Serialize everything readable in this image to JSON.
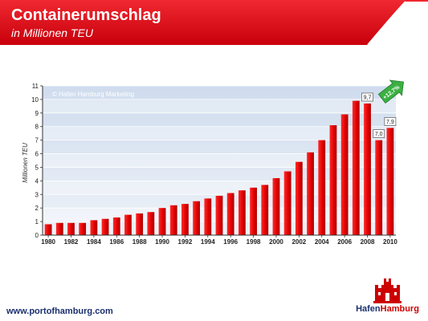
{
  "header": {
    "title": "Containerumschlag",
    "subtitle": "in Millionen TEU"
  },
  "colors": {
    "brand_red": "#e30613",
    "bar_red": "#e00000",
    "plot_background": "#dde6f2",
    "growth_arrow": "#33aa33",
    "footer_blue": "#1a2f6e"
  },
  "chart_data": {
    "type": "bar",
    "watermark": "© Hafen Hamburg Marketing",
    "categories": [
      "1980",
      "1981",
      "1982",
      "1983",
      "1984",
      "1985",
      "1986",
      "1987",
      "1988",
      "1989",
      "1990",
      "1991",
      "1992",
      "1993",
      "1994",
      "1995",
      "1996",
      "1997",
      "1998",
      "1999",
      "2000",
      "2001",
      "2002",
      "2003",
      "2004",
      "2005",
      "2006",
      "2007",
      "2008",
      "2009",
      "2010"
    ],
    "x_tick_labels": [
      "1980",
      "1982",
      "1984",
      "1986",
      "1988",
      "1990",
      "1992",
      "1994",
      "1996",
      "1998",
      "2000",
      "2002",
      "2004",
      "2006",
      "2008",
      "2010"
    ],
    "values": [
      0.8,
      0.9,
      0.9,
      0.9,
      1.1,
      1.2,
      1.3,
      1.5,
      1.6,
      1.7,
      2.0,
      2.2,
      2.3,
      2.5,
      2.7,
      2.9,
      3.1,
      3.3,
      3.5,
      3.7,
      4.2,
      4.7,
      5.4,
      6.1,
      7.0,
      8.1,
      8.9,
      9.9,
      9.7,
      7.0,
      7.9
    ],
    "data_labels": [
      {
        "category": "2008",
        "text": "9,7"
      },
      {
        "category": "2009",
        "text": "7,0"
      },
      {
        "category": "2010",
        "text": "7,9"
      }
    ],
    "annotation": "+12,7%",
    "ylabel": "Millionen TEU",
    "xlabel": "",
    "ylim": [
      0,
      11
    ],
    "y_ticks": [
      "0",
      "1",
      "2",
      "3",
      "4",
      "5",
      "6",
      "7",
      "8",
      "9",
      "10",
      "11"
    ],
    "grid": true,
    "legend": "none"
  },
  "footer": {
    "url": "www.portofhamburg.com",
    "logo_text_a": "Hafen",
    "logo_text_b": "Hamburg"
  }
}
